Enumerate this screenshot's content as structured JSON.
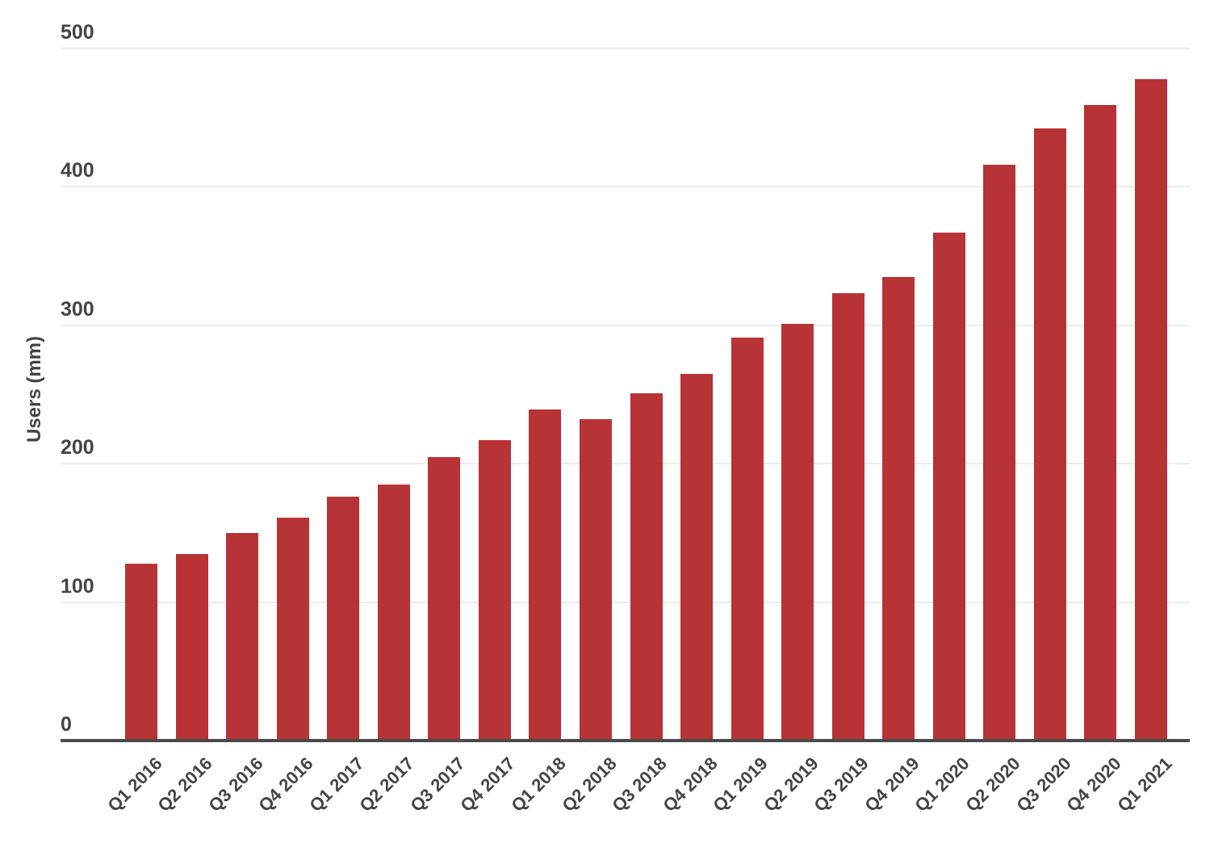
{
  "chart_data": {
    "type": "bar",
    "title": "",
    "xlabel": "",
    "ylabel": "Users (mm)",
    "ylim": [
      0,
      500
    ],
    "yticks": [
      0,
      100,
      200,
      300,
      400,
      500
    ],
    "grid": true,
    "legend": null,
    "bar_color": "#b73336",
    "categories": [
      "Q1 2016",
      "Q2 2016",
      "Q3 2016",
      "Q4 2016",
      "Q1 2017",
      "Q2 2017",
      "Q3 2017",
      "Q4 2017",
      "Q1 2018",
      "Q2 2018",
      "Q3 2018",
      "Q4 2018",
      "Q1 2019",
      "Q2 2019",
      "Q3 2019",
      "Q4 2019",
      "Q1 2020",
      "Q2 2020",
      "Q3 2020",
      "Q4 2020",
      "Q1 2021"
    ],
    "values": [
      128,
      135,
      150,
      161,
      176,
      185,
      205,
      217,
      239,
      232,
      251,
      265,
      291,
      301,
      323,
      335,
      367,
      416,
      442,
      459,
      478
    ]
  }
}
